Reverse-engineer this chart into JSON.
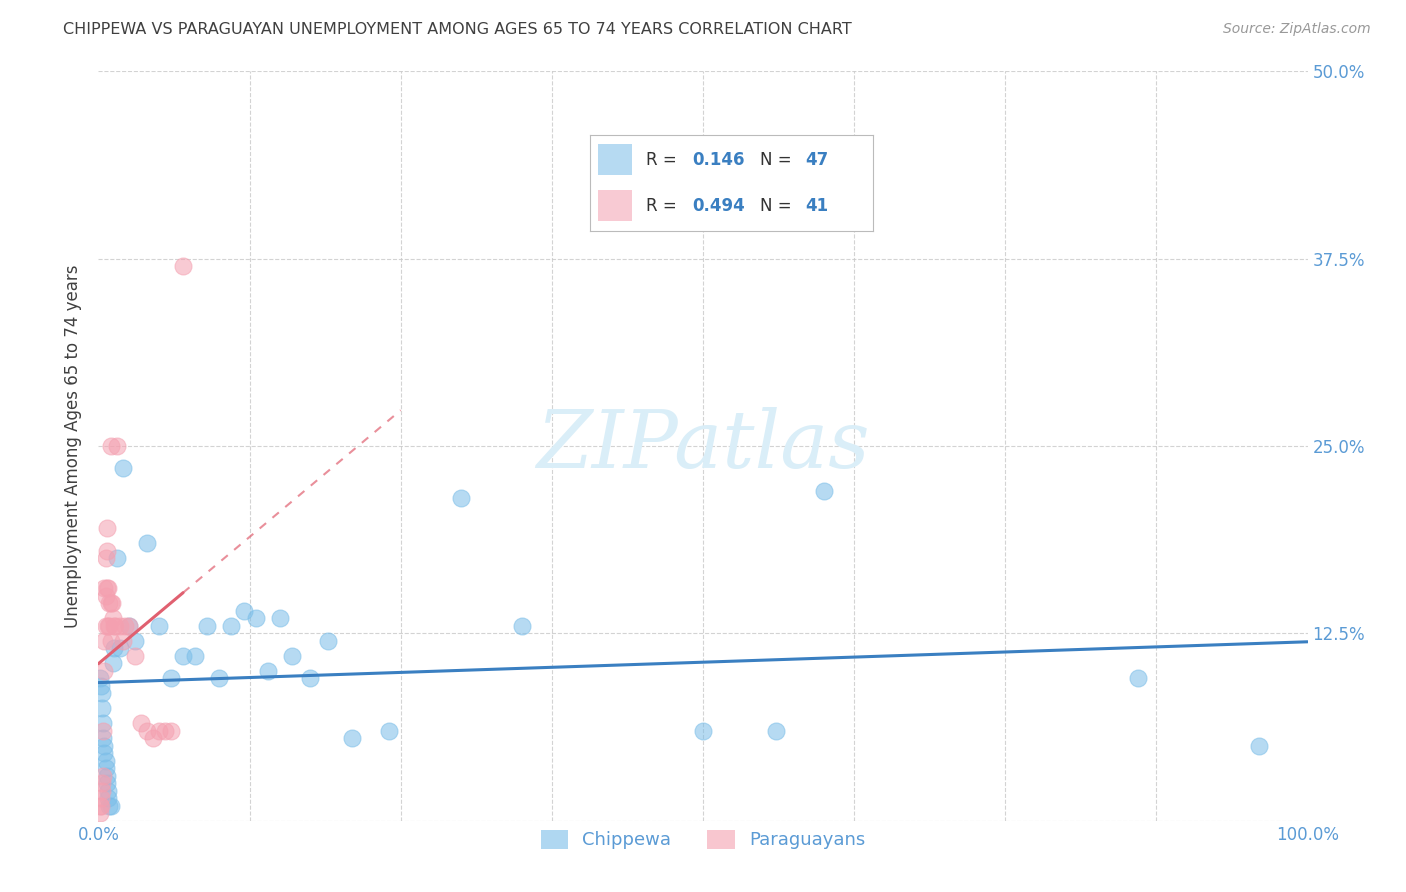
{
  "title": "CHIPPEWA VS PARAGUAYAN UNEMPLOYMENT AMONG AGES 65 TO 74 YEARS CORRELATION CHART",
  "source": "Source: ZipAtlas.com",
  "ylabel": "Unemployment Among Ages 65 to 74 years",
  "xlim": [
    0,
    1.0
  ],
  "ylim": [
    0,
    0.5
  ],
  "xticks": [
    0.0,
    0.125,
    0.25,
    0.375,
    0.5,
    0.625,
    0.75,
    0.875,
    1.0
  ],
  "xticklabels": [
    "0.0%",
    "",
    "",
    "",
    "",
    "",
    "",
    "",
    "100.0%"
  ],
  "yticks": [
    0.0,
    0.125,
    0.25,
    0.375,
    0.5
  ],
  "yticklabels": [
    "",
    "12.5%",
    "25.0%",
    "37.5%",
    "50.0%"
  ],
  "chippewa_color": "#7abde8",
  "paraguayan_color": "#f4a0b0",
  "chippewa_R": 0.146,
  "chippewa_N": 47,
  "paraguayan_R": 0.494,
  "paraguayan_N": 41,
  "watermark": "ZIPatlas",
  "watermark_color": "#daeef8",
  "chippewa_x": [
    0.001,
    0.002,
    0.003,
    0.003,
    0.004,
    0.004,
    0.005,
    0.005,
    0.006,
    0.006,
    0.007,
    0.007,
    0.008,
    0.008,
    0.009,
    0.01,
    0.012,
    0.013,
    0.015,
    0.018,
    0.02,
    0.025,
    0.03,
    0.04,
    0.05,
    0.06,
    0.07,
    0.08,
    0.09,
    0.1,
    0.11,
    0.12,
    0.13,
    0.14,
    0.15,
    0.16,
    0.175,
    0.19,
    0.21,
    0.24,
    0.3,
    0.35,
    0.5,
    0.56,
    0.6,
    0.86,
    0.96
  ],
  "chippewa_y": [
    0.095,
    0.09,
    0.085,
    0.075,
    0.065,
    0.055,
    0.05,
    0.045,
    0.04,
    0.035,
    0.03,
    0.025,
    0.02,
    0.015,
    0.01,
    0.01,
    0.105,
    0.115,
    0.175,
    0.115,
    0.235,
    0.13,
    0.12,
    0.185,
    0.13,
    0.095,
    0.11,
    0.11,
    0.13,
    0.095,
    0.13,
    0.14,
    0.135,
    0.1,
    0.135,
    0.11,
    0.095,
    0.12,
    0.055,
    0.06,
    0.215,
    0.13,
    0.06,
    0.06,
    0.22,
    0.095,
    0.05
  ],
  "paraguayan_x": [
    0.001,
    0.001,
    0.002,
    0.002,
    0.003,
    0.003,
    0.004,
    0.004,
    0.005,
    0.005,
    0.005,
    0.006,
    0.006,
    0.006,
    0.007,
    0.007,
    0.007,
    0.008,
    0.008,
    0.009,
    0.009,
    0.01,
    0.01,
    0.01,
    0.011,
    0.012,
    0.013,
    0.014,
    0.015,
    0.018,
    0.02,
    0.022,
    0.025,
    0.03,
    0.035,
    0.04,
    0.045,
    0.05,
    0.055,
    0.06,
    0.07
  ],
  "paraguayan_y": [
    0.005,
    0.01,
    0.01,
    0.015,
    0.02,
    0.025,
    0.03,
    0.06,
    0.1,
    0.12,
    0.155,
    0.13,
    0.15,
    0.175,
    0.155,
    0.18,
    0.195,
    0.13,
    0.155,
    0.13,
    0.145,
    0.12,
    0.145,
    0.25,
    0.145,
    0.135,
    0.13,
    0.13,
    0.25,
    0.13,
    0.12,
    0.13,
    0.13,
    0.11,
    0.065,
    0.06,
    0.055,
    0.06,
    0.06,
    0.06,
    0.37
  ],
  "blue_line_color": "#3a7fc1",
  "pink_line_color": "#e06070",
  "tick_color": "#5b9bd5",
  "grid_color": "#c8c8c8",
  "title_color": "#404040",
  "ylabel_color": "#404040",
  "legend_R_color": "#1f4e79",
  "legend_N_color": "#1f6699"
}
